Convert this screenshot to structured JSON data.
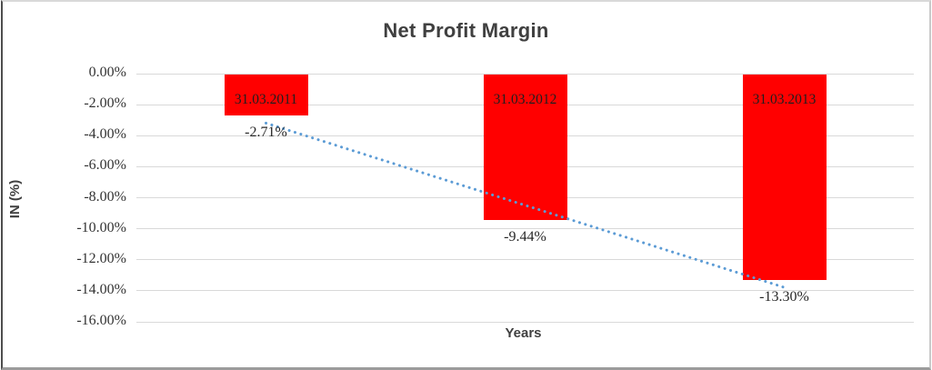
{
  "chart_data": {
    "type": "bar",
    "title": "Net Profit Margin",
    "xlabel": "Years",
    "ylabel": "IN (%)",
    "categories": [
      "31.03.2011",
      "31.03.2012",
      "31.03.2013"
    ],
    "values": [
      -2.71,
      -9.44,
      -13.3
    ],
    "data_labels": [
      "-2.71%",
      "-9.44%",
      "-13.30%"
    ],
    "category_label_position": "inside-base",
    "data_label_position": "outside-end",
    "ylim": [
      -16,
      0
    ],
    "yticks": [
      0,
      -2,
      -4,
      -6,
      -8,
      -10,
      -12,
      -14,
      -16
    ],
    "ytick_labels": [
      "0.00%",
      "-2.00%",
      "-4.00%",
      "-6.00%",
      "-8.00%",
      "-10.00%",
      "-12.00%",
      "-14.00%",
      "-16.00%"
    ],
    "grid": true,
    "legend": "none",
    "bar_color": "#FF0000",
    "gridline_color": "#D9D9D9",
    "title_color": "#404040",
    "trendline": {
      "type": "linear",
      "style": "dotted",
      "color": "#5B9BD5",
      "start_value": -3.19,
      "end_value": -13.78
    }
  }
}
